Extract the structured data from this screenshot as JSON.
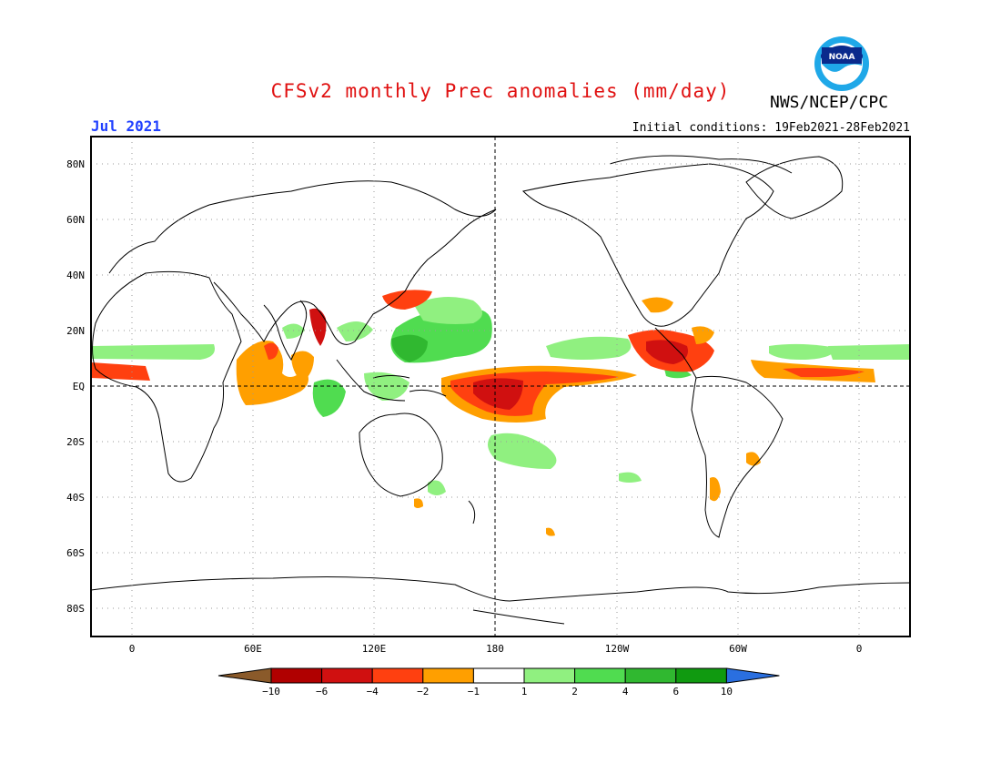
{
  "header": {
    "title": "CFSv2 monthly Prec anomalies (mm/day)",
    "agency": "NWS/NCEP/CPC",
    "logo_text": "NOAA",
    "month": "Jul 2021",
    "init_conditions": "Initial conditions: 19Feb2021-28Feb2021"
  },
  "map": {
    "projection": "equirectangular",
    "lon_range": [
      -20,
      382
    ],
    "lat_range": [
      -90,
      90
    ],
    "lat_ticks": [
      {
        "lat": 80,
        "label": "80N"
      },
      {
        "lat": 60,
        "label": "60N"
      },
      {
        "lat": 40,
        "label": "40N"
      },
      {
        "lat": 20,
        "label": "20N"
      },
      {
        "lat": 0,
        "label": "EQ"
      },
      {
        "lat": -20,
        "label": "20S"
      },
      {
        "lat": -40,
        "label": "40S"
      },
      {
        "lat": -60,
        "label": "60S"
      },
      {
        "lat": -80,
        "label": "80S"
      }
    ],
    "lon_ticks": [
      {
        "lon": 0,
        "label": "0"
      },
      {
        "lon": 60,
        "label": "60E"
      },
      {
        "lon": 120,
        "label": "120E"
      },
      {
        "lon": 180,
        "label": "180"
      },
      {
        "lon": 240,
        "label": "120W"
      },
      {
        "lon": 300,
        "label": "60W"
      },
      {
        "lon": 360,
        "label": "0"
      }
    ],
    "reference_lines": [
      "equator",
      "dateline"
    ]
  },
  "colorbar": {
    "labels": [
      "-10",
      "-6",
      "-4",
      "-2",
      "-1",
      "1",
      "2",
      "4",
      "6",
      "10"
    ],
    "colors": [
      "#8a5a2a",
      "#b00000",
      "#d01010",
      "#ff4010",
      "#ff9f00",
      "#ffffff",
      "#90f080",
      "#50dc50",
      "#30b830",
      "#109a10",
      "#2a6fe0"
    ]
  }
}
